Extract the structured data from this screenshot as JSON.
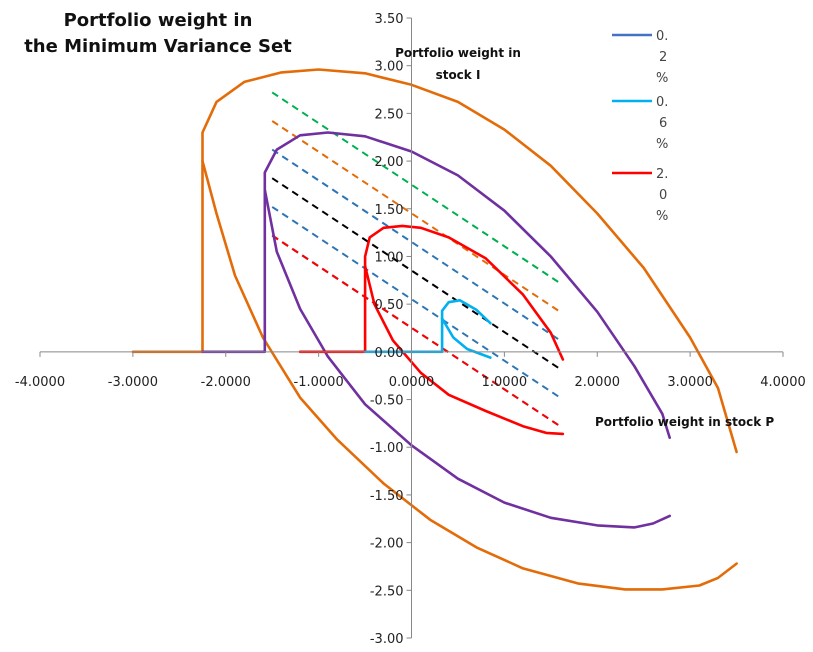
{
  "chart_data": {
    "type": "line",
    "title_lines": [
      "Portfolio weight in",
      "the Minimum Variance Set"
    ],
    "xlabel": "Portfolio weight in stock P",
    "ylabel_lines": [
      "Portfolio weight in",
      "stock I"
    ],
    "xlim": [
      -4,
      4
    ],
    "ylim": [
      -3,
      3.5
    ],
    "x_ticks": [
      "-4.0000",
      "-3.0000",
      "-2.0000",
      "-1.0000",
      "0.0000",
      "1.0000",
      "2.0000",
      "3.0000",
      "4.0000"
    ],
    "y_ticks": [
      "-3.00",
      "-2.50",
      "-2.00",
      "-1.50",
      "-1.00",
      "-0.50",
      "0.00",
      "0.50",
      "1.00",
      "1.50",
      "2.00",
      "2.50",
      "3.00",
      "3.50"
    ],
    "legend": [
      {
        "lines": [
          "0.",
          "2",
          "%"
        ],
        "color": "#4472c4"
      },
      {
        "lines": [
          "0.",
          "6",
          "%"
        ],
        "color": "#00b0f0"
      },
      {
        "lines": [
          "2.",
          "0",
          "%"
        ],
        "color": "#ff0000"
      }
    ],
    "series": [
      {
        "color": "#e36c09",
        "style": "solid",
        "points": [
          [
            -3.0,
            0.0
          ],
          [
            -2.25,
            0.0
          ],
          [
            -2.25,
            2.3
          ],
          [
            -2.1,
            2.62
          ],
          [
            -1.8,
            2.83
          ],
          [
            -1.4,
            2.93
          ],
          [
            -1.0,
            2.96
          ],
          [
            -0.5,
            2.92
          ],
          [
            0.0,
            2.8
          ],
          [
            0.5,
            2.62
          ],
          [
            1.0,
            2.33
          ],
          [
            1.5,
            1.95
          ],
          [
            2.0,
            1.45
          ],
          [
            2.5,
            0.88
          ],
          [
            3.0,
            0.15
          ],
          [
            3.3,
            -0.38
          ],
          [
            3.5,
            -1.05
          ]
        ]
      },
      {
        "color": "#e36c09",
        "style": "solid",
        "points": [
          [
            -2.25,
            2.0
          ],
          [
            -2.1,
            1.45
          ],
          [
            -1.9,
            0.8
          ],
          [
            -1.6,
            0.15
          ],
          [
            -1.2,
            -0.48
          ],
          [
            -0.8,
            -0.92
          ],
          [
            -0.3,
            -1.38
          ],
          [
            0.2,
            -1.76
          ],
          [
            0.7,
            -2.05
          ],
          [
            1.2,
            -2.27
          ],
          [
            1.8,
            -2.43
          ],
          [
            2.3,
            -2.49
          ],
          [
            2.7,
            -2.49
          ],
          [
            3.1,
            -2.45
          ],
          [
            3.3,
            -2.37
          ],
          [
            3.5,
            -2.22
          ]
        ]
      },
      {
        "color": "#7030a0",
        "style": "solid",
        "points": [
          [
            -2.25,
            0.0
          ],
          [
            -1.58,
            0.0
          ],
          [
            -1.58,
            1.88
          ],
          [
            -1.45,
            2.12
          ],
          [
            -1.2,
            2.27
          ],
          [
            -0.9,
            2.3
          ],
          [
            -0.5,
            2.26
          ],
          [
            0.0,
            2.1
          ],
          [
            0.5,
            1.85
          ],
          [
            1.0,
            1.48
          ],
          [
            1.5,
            1.0
          ],
          [
            2.0,
            0.42
          ],
          [
            2.4,
            -0.15
          ],
          [
            2.7,
            -0.65
          ],
          [
            2.78,
            -0.9
          ]
        ]
      },
      {
        "color": "#7030a0",
        "style": "solid",
        "points": [
          [
            -1.58,
            1.7
          ],
          [
            -1.45,
            1.05
          ],
          [
            -1.2,
            0.45
          ],
          [
            -0.9,
            -0.05
          ],
          [
            -0.5,
            -0.55
          ],
          [
            0.0,
            -0.98
          ],
          [
            0.5,
            -1.33
          ],
          [
            1.0,
            -1.58
          ],
          [
            1.5,
            -1.74
          ],
          [
            2.0,
            -1.82
          ],
          [
            2.4,
            -1.84
          ],
          [
            2.6,
            -1.8
          ],
          [
            2.78,
            -1.72
          ]
        ]
      },
      {
        "color": "#ff0000",
        "style": "solid",
        "points": [
          [
            -1.2,
            0.0
          ],
          [
            -0.5,
            0.0
          ],
          [
            -0.5,
            1.0
          ],
          [
            -0.45,
            1.2
          ],
          [
            -0.3,
            1.3
          ],
          [
            -0.1,
            1.32
          ],
          [
            0.1,
            1.3
          ],
          [
            0.4,
            1.2
          ],
          [
            0.8,
            0.98
          ],
          [
            1.2,
            0.6
          ],
          [
            1.5,
            0.2
          ],
          [
            1.63,
            -0.08
          ]
        ]
      },
      {
        "color": "#ff0000",
        "style": "solid",
        "points": [
          [
            -0.5,
            0.9
          ],
          [
            -0.4,
            0.5
          ],
          [
            -0.2,
            0.12
          ],
          [
            0.1,
            -0.22
          ],
          [
            0.4,
            -0.45
          ],
          [
            0.8,
            -0.62
          ],
          [
            1.2,
            -0.78
          ],
          [
            1.45,
            -0.85
          ],
          [
            1.63,
            -0.86
          ]
        ]
      },
      {
        "color": "#00b0f0",
        "style": "solid",
        "points": [
          [
            -0.5,
            0.0
          ],
          [
            0.33,
            0.0
          ],
          [
            0.33,
            0.43
          ],
          [
            0.4,
            0.52
          ],
          [
            0.52,
            0.54
          ],
          [
            0.7,
            0.44
          ],
          [
            0.85,
            0.3
          ]
        ]
      },
      {
        "color": "#00b0f0",
        "style": "solid",
        "points": [
          [
            0.33,
            0.35
          ],
          [
            0.45,
            0.15
          ],
          [
            0.6,
            0.03
          ],
          [
            0.85,
            -0.06
          ]
        ]
      },
      {
        "color": "#00b050",
        "style": "dashed",
        "points": [
          [
            -1.5,
            2.72
          ],
          [
            1.6,
            0.72
          ]
        ]
      },
      {
        "color": "#e36c09",
        "style": "dashed",
        "points": [
          [
            -1.5,
            2.42
          ],
          [
            1.6,
            0.42
          ]
        ]
      },
      {
        "color": "#2e75b6",
        "style": "dashed",
        "points": [
          [
            -1.5,
            2.12
          ],
          [
            1.6,
            0.12
          ]
        ]
      },
      {
        "color": "#000000",
        "style": "dashed",
        "points": [
          [
            -1.5,
            1.82
          ],
          [
            1.6,
            -0.18
          ]
        ]
      },
      {
        "color": "#2e75b6",
        "style": "dashed",
        "points": [
          [
            -1.5,
            1.52
          ],
          [
            1.6,
            -0.48
          ]
        ]
      },
      {
        "color": "#1f4e79",
        "style": "dashed",
        "points": [
          [
            -1.5,
            1.22
          ],
          [
            1.6,
            -0.78
          ]
        ]
      },
      {
        "color": "#ff0000",
        "style": "dashed",
        "points": [
          [
            -1.5,
            1.22
          ],
          [
            1.6,
            -0.78
          ]
        ]
      }
    ]
  }
}
